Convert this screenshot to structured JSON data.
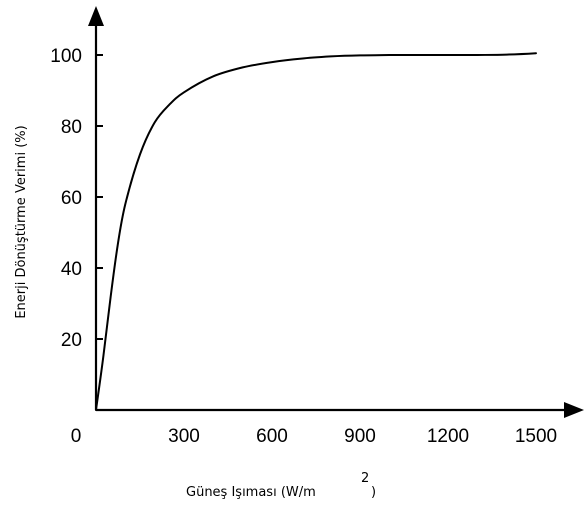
{
  "chart_data": {
    "type": "line",
    "title": "",
    "xlabel": "Güneş Işıması (W/m",
    "xlabel_superscript": "2",
    "xlabel_close": ")",
    "ylabel": "Enerji Dönüştürme Verimi (%)",
    "x_ticks": [
      "0",
      "300",
      "600",
      "900",
      "1200",
      "1500"
    ],
    "y_ticks": [
      "20",
      "40",
      "60",
      "80",
      "100"
    ],
    "xlim": [
      0,
      1500
    ],
    "ylim": [
      0,
      100
    ],
    "grid": false,
    "legend": "none",
    "line_color": "#000000",
    "series": [
      {
        "x": [
          0,
          25,
          50,
          75,
          100,
          150,
          200,
          250,
          300,
          400,
          500,
          600,
          700,
          800,
          900,
          1000,
          1100,
          1200,
          1300,
          1400,
          1500
        ],
        "y": [
          0,
          15,
          32,
          47,
          58,
          72,
          81,
          86,
          89.5,
          94,
          96.5,
          98,
          99,
          99.6,
          99.9,
          100,
          100,
          100,
          100,
          100.1,
          100.5
        ]
      }
    ]
  }
}
